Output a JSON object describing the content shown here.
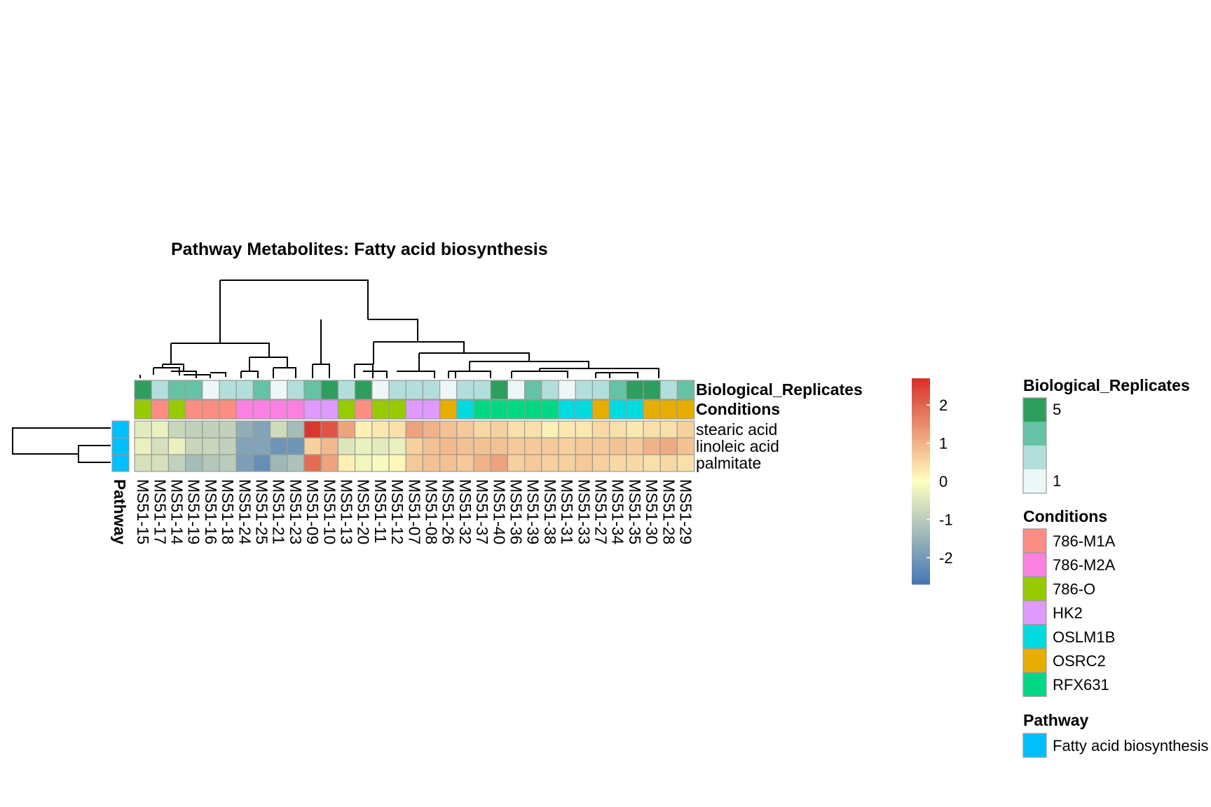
{
  "chart_data": {
    "type": "heatmap",
    "title": "Pathway  Metabolites:  Fatty acid biosynthesis",
    "columns": [
      "MS51-15",
      "MS51-17",
      "MS51-14",
      "MS51-19",
      "MS51-16",
      "MS51-18",
      "MS51-24",
      "MS51-25",
      "MS51-21",
      "MS51-23",
      "MS51-09",
      "MS51-10",
      "MS51-13",
      "MS51-20",
      "MS51-11",
      "MS51-12",
      "MS51-07",
      "MS51-08",
      "MS51-26",
      "MS51-32",
      "MS51-37",
      "MS51-40",
      "MS51-36",
      "MS51-39",
      "MS51-38",
      "MS51-31",
      "MS51-33",
      "MS51-27",
      "MS51-34",
      "MS51-35",
      "MS51-30",
      "MS51-28",
      "MS51-29"
    ],
    "rows": [
      "stearic acid",
      "linoleic acid",
      "palmitate"
    ],
    "values": [
      [
        -0.4,
        -0.3,
        -0.8,
        -0.9,
        -0.9,
        -0.9,
        -1.6,
        -1.8,
        -0.7,
        -1.3,
        2.6,
        2.2,
        1.2,
        0.2,
        0.3,
        0.4,
        1.2,
        1.0,
        0.8,
        0.7,
        0.5,
        0.6,
        0.4,
        0.4,
        0.2,
        0.3,
        0.3,
        0.5,
        0.4,
        0.3,
        0.4,
        0.4,
        0.6
      ],
      [
        -0.3,
        -0.6,
        -0.3,
        -0.8,
        -0.8,
        -0.9,
        -1.8,
        -1.8,
        -2.1,
        -2.1,
        0.6,
        0.9,
        -0.5,
        -0.3,
        -0.4,
        -0.3,
        0.6,
        0.8,
        0.9,
        0.8,
        0.8,
        0.8,
        0.7,
        0.7,
        0.7,
        0.6,
        0.7,
        0.7,
        0.8,
        0.7,
        1.0,
        1.1,
        0.8
      ],
      [
        -0.6,
        -0.6,
        -0.9,
        -1.3,
        -1.1,
        -1.0,
        -1.9,
        -2.2,
        -1.4,
        -1.2,
        1.9,
        1.2,
        0.2,
        -0.2,
        -0.1,
        0.1,
        0.7,
        0.8,
        0.8,
        0.7,
        1.0,
        1.2,
        0.6,
        0.7,
        0.6,
        0.6,
        0.7,
        0.6,
        0.5,
        0.5,
        0.4,
        0.5,
        0.4
      ]
    ],
    "annotations": {
      "Biological_Replicates": [
        5,
        2,
        4,
        4,
        1,
        3,
        3,
        4,
        1,
        2,
        4,
        5,
        3,
        5,
        1,
        2,
        2,
        3,
        1,
        2,
        2,
        5,
        1,
        4,
        3,
        1,
        3,
        2,
        4,
        5,
        5,
        3,
        4
      ],
      "Conditions": [
        "786-O",
        "786-M1A",
        "786-O",
        "786-M1A",
        "786-M1A",
        "786-M1A",
        "786-M2A",
        "786-M2A",
        "786-M2A",
        "786-M2A",
        "HK2",
        "HK2",
        "786-O",
        "786-M1A",
        "786-O",
        "786-O",
        "HK2",
        "HK2",
        "OSRC2",
        "OSLM1B",
        "RFX631",
        "RFX631",
        "RFX631",
        "RFX631",
        "RFX631",
        "OSLM1B",
        "OSLM1B",
        "OSRC2",
        "OSLM1B",
        "OSLM1B",
        "OSRC2",
        "OSRC2",
        "OSRC2"
      ],
      "Pathway": [
        "Fatty acid biosynthesis",
        "Fatty acid biosynthesis",
        "Fatty acid biosynthesis"
      ]
    },
    "color_scale": {
      "ticks": [
        -2,
        -1,
        0,
        1,
        2
      ],
      "range": [
        -2.7,
        2.7
      ],
      "low": "#4575b4",
      "mid": "#ffffbf",
      "high": "#d73027"
    },
    "legends": {
      "Biological_Replicates": {
        "title": "Biological_Replicates",
        "labels": [
          "5",
          "1"
        ],
        "colors": [
          "#2e9e5e",
          "#66c2a5",
          "#b2dfdb",
          "#edf7f7"
        ]
      },
      "Conditions": {
        "title": "Conditions",
        "items": [
          {
            "label": "786-M1A",
            "color": "#fc8d83"
          },
          {
            "label": "786-M2A",
            "color": "#fb81e0"
          },
          {
            "label": "786-O",
            "color": "#97cb00"
          },
          {
            "label": "HK2",
            "color": "#df9afe"
          },
          {
            "label": "OSLM1B",
            "color": "#00dbe0"
          },
          {
            "label": "OSRC2",
            "color": "#e6ae00"
          },
          {
            "label": "RFX631",
            "color": "#00d884"
          }
        ]
      },
      "Pathway": {
        "title": "Pathway",
        "items": [
          {
            "label": "Fatty acid biosynthesis",
            "color": "#00bfff"
          }
        ]
      }
    },
    "annotation_row_labels": [
      "Biological_Replicates",
      "Conditions"
    ],
    "row_annotation_label": "Pathway"
  }
}
